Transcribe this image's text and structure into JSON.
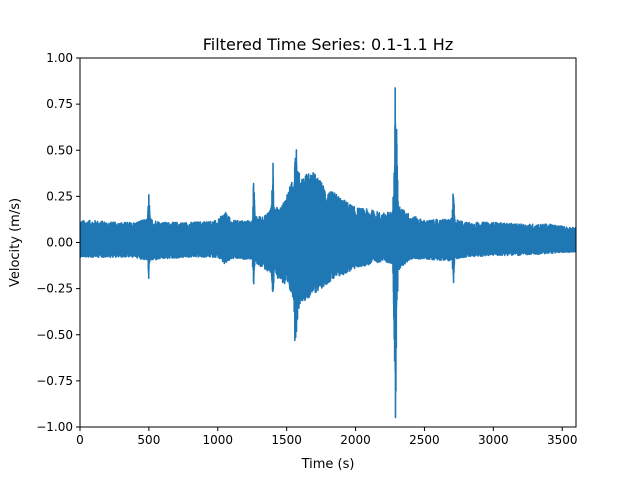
{
  "chart_data": {
    "type": "line",
    "title": "Filtered Time Series: 0.1-1.1 Hz",
    "xlabel": "Time (s)",
    "ylabel": "Velocity (m/s)",
    "xlim": [
      0,
      3600
    ],
    "ylim": [
      -1.0,
      1.0
    ],
    "grid": false,
    "legend": "none",
    "x_ticks": [
      0,
      500,
      1000,
      1500,
      2000,
      2500,
      3000,
      3500
    ],
    "x_tick_labels": [
      "0",
      "500",
      "1000",
      "1500",
      "2000",
      "2500",
      "3000",
      "3500"
    ],
    "y_ticks": [
      -1.0,
      -0.75,
      -0.5,
      -0.25,
      0.0,
      0.25,
      0.5,
      0.75,
      1.0
    ],
    "y_tick_labels": [
      "−1.00",
      "−0.75",
      "−0.50",
      "−0.25",
      "0.00",
      "0.25",
      "0.50",
      "0.75",
      "1.00"
    ],
    "series": [
      {
        "color": "#1f77b4",
        "envelope": {
          "x": [
            0,
            100,
            250,
            400,
            490,
            500,
            510,
            600,
            800,
            1000,
            1050,
            1100,
            1250,
            1260,
            1270,
            1350,
            1390,
            1400,
            1410,
            1450,
            1550,
            1560,
            1570,
            1580,
            1600,
            1650,
            1700,
            1750,
            1800,
            1850,
            1900,
            2000,
            2100,
            2200,
            2270,
            2280,
            2290,
            2300,
            2310,
            2400,
            2500,
            2700,
            2710,
            2720,
            2800,
            3000,
            3200,
            3400,
            3600
          ],
          "upper": [
            0.12,
            0.12,
            0.11,
            0.11,
            0.13,
            0.28,
            0.13,
            0.11,
            0.11,
            0.12,
            0.17,
            0.12,
            0.12,
            0.38,
            0.14,
            0.15,
            0.2,
            0.46,
            0.2,
            0.18,
            0.35,
            0.55,
            0.56,
            0.4,
            0.36,
            0.38,
            0.38,
            0.33,
            0.28,
            0.27,
            0.24,
            0.19,
            0.18,
            0.16,
            0.17,
            0.5,
            1.0,
            0.55,
            0.2,
            0.15,
            0.12,
            0.13,
            0.31,
            0.13,
            0.11,
            0.11,
            0.1,
            0.1,
            0.08
          ],
          "lower": [
            -0.08,
            -0.08,
            -0.08,
            -0.08,
            -0.1,
            -0.21,
            -0.1,
            -0.09,
            -0.08,
            -0.08,
            -0.12,
            -0.09,
            -0.09,
            -0.24,
            -0.11,
            -0.15,
            -0.18,
            -0.31,
            -0.18,
            -0.2,
            -0.3,
            -0.55,
            -0.51,
            -0.4,
            -0.32,
            -0.31,
            -0.28,
            -0.25,
            -0.22,
            -0.2,
            -0.18,
            -0.14,
            -0.12,
            -0.1,
            -0.12,
            -0.5,
            -1.0,
            -0.45,
            -0.15,
            -0.09,
            -0.09,
            -0.1,
            -0.25,
            -0.09,
            -0.08,
            -0.07,
            -0.07,
            -0.06,
            -0.05
          ]
        }
      }
    ]
  }
}
